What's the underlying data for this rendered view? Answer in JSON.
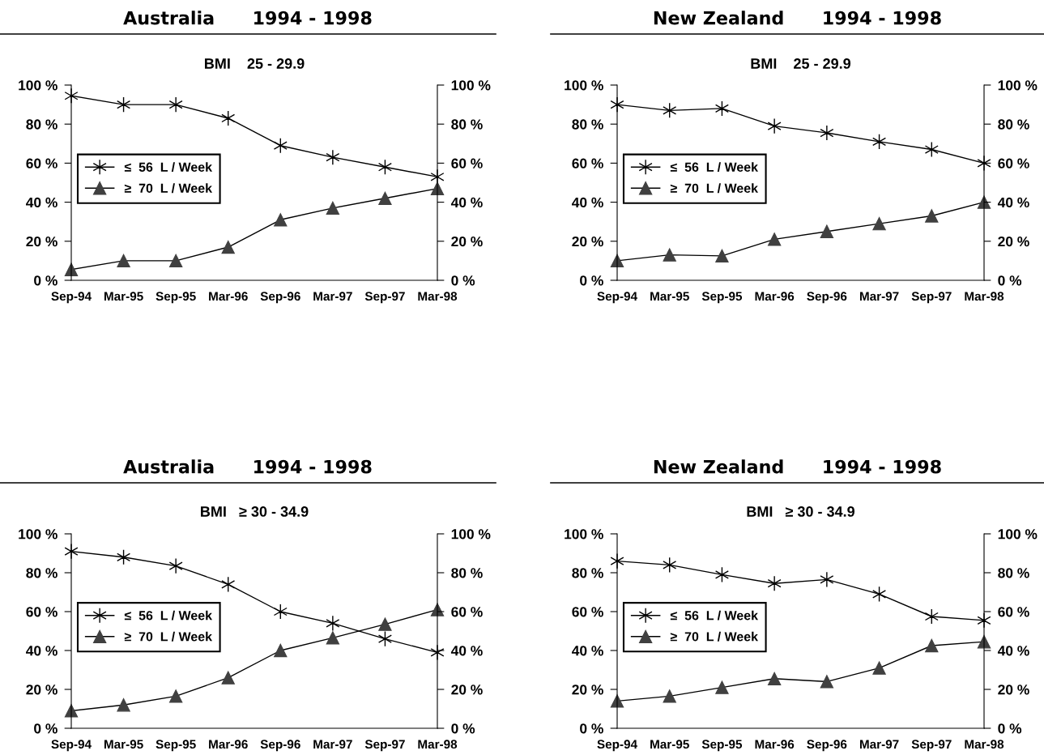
{
  "chart_data": [
    {
      "type": "line",
      "title": "Australia      1994 - 1998",
      "subtitle": "BMI    25 - 29.9",
      "categories": [
        "Sep-94",
        "Mar-95",
        "Sep-95",
        "Mar-96",
        "Sep-96",
        "Mar-97",
        "Sep-97",
        "Mar-98"
      ],
      "series": [
        {
          "name": "≤  56  L / Week",
          "color": "#000000",
          "marker": "cross",
          "values": [
            94.5,
            90,
            90,
            83,
            69,
            63,
            58,
            53
          ]
        },
        {
          "name": "≥  70  L / Week",
          "color": "#404040",
          "marker": "triangle",
          "values": [
            5.5,
            10,
            10,
            17,
            31,
            37,
            42,
            47
          ]
        }
      ],
      "ylim": [
        0,
        100
      ],
      "yticks": [
        {
          "value": 0,
          "label": "0 %"
        },
        {
          "value": 20,
          "label": "20 %"
        },
        {
          "value": 40,
          "label": "40 %"
        },
        {
          "value": 60,
          "label": "60 %"
        },
        {
          "value": 80,
          "label": "80 %"
        },
        {
          "value": 100,
          "label": "100 %"
        }
      ],
      "y2lim": [
        0,
        100
      ],
      "y2ticks": [
        {
          "value": 0,
          "label": "0 %"
        },
        {
          "value": 20,
          "label": "20 %"
        },
        {
          "value": 40,
          "label": "40 %"
        },
        {
          "value": 60,
          "label": "60 %"
        },
        {
          "value": 80,
          "label": "80 %"
        },
        {
          "value": 100,
          "label": "100 %"
        }
      ],
      "grid": false,
      "legend": "left",
      "line_style": "solid"
    },
    {
      "type": "line",
      "title": "New Zealand      1994 - 1998",
      "subtitle": "BMI    25 - 29.9",
      "categories": [
        "Sep-94",
        "Mar-95",
        "Sep-95",
        "Mar-96",
        "Sep-96",
        "Mar-97",
        "Sep-97",
        "Mar-98"
      ],
      "series": [
        {
          "name": "≤  56  L / Week",
          "color": "#000000",
          "marker": "cross",
          "values": [
            90,
            87,
            88,
            79,
            75.5,
            71,
            67,
            60
          ]
        },
        {
          "name": "≥  70  L / Week",
          "color": "#404040",
          "marker": "triangle",
          "values": [
            10,
            13,
            12.5,
            21,
            25,
            29,
            33,
            40
          ]
        }
      ],
      "ylim": [
        0,
        100
      ],
      "yticks": [
        {
          "value": 0,
          "label": "0 %"
        },
        {
          "value": 20,
          "label": "20 %"
        },
        {
          "value": 40,
          "label": "40 %"
        },
        {
          "value": 60,
          "label": "60 %"
        },
        {
          "value": 80,
          "label": "80 %"
        },
        {
          "value": 100,
          "label": "100 %"
        }
      ],
      "y2lim": [
        0,
        100
      ],
      "y2ticks": [
        {
          "value": 0,
          "label": "0 %"
        },
        {
          "value": 20,
          "label": "20 %"
        },
        {
          "value": 40,
          "label": "40 %"
        },
        {
          "value": 60,
          "label": "60 %"
        },
        {
          "value": 80,
          "label": "80 %"
        },
        {
          "value": 100,
          "label": "100 %"
        }
      ],
      "grid": false,
      "legend": "left",
      "line_style": "solid"
    },
    {
      "type": "line",
      "title": "Australia      1994 - 1998",
      "subtitle": "BMI   ≥ 30 - 34.9",
      "categories": [
        "Sep-94",
        "Mar-95",
        "Sep-95",
        "Mar-96",
        "Sep-96",
        "Mar-97",
        "Sep-97",
        "Mar-98"
      ],
      "series": [
        {
          "name": "≤  56  L / Week",
          "color": "#000000",
          "marker": "cross",
          "values": [
            91,
            88,
            83.5,
            74,
            60,
            54,
            46,
            39
          ]
        },
        {
          "name": "≥  70  L / Week",
          "color": "#404040",
          "marker": "triangle",
          "values": [
            9,
            12,
            16.5,
            26,
            40,
            46.5,
            53.5,
            61
          ]
        }
      ],
      "ylim": [
        0,
        100
      ],
      "yticks": [
        {
          "value": 0,
          "label": "0 %"
        },
        {
          "value": 20,
          "label": "20 %"
        },
        {
          "value": 40,
          "label": "40 %"
        },
        {
          "value": 60,
          "label": "60 %"
        },
        {
          "value": 80,
          "label": "80 %"
        },
        {
          "value": 100,
          "label": "100 %"
        }
      ],
      "y2lim": [
        0,
        100
      ],
      "y2ticks": [
        {
          "value": 0,
          "label": "0 %"
        },
        {
          "value": 20,
          "label": "20 %"
        },
        {
          "value": 40,
          "label": "40 %"
        },
        {
          "value": 60,
          "label": "60 %"
        },
        {
          "value": 80,
          "label": "80 %"
        },
        {
          "value": 100,
          "label": "100 %"
        }
      ],
      "grid": false,
      "legend": "left",
      "line_style": "solid"
    },
    {
      "type": "line",
      "title": "New Zealand      1994 - 1998",
      "subtitle": "BMI   ≥ 30 - 34.9",
      "categories": [
        "Sep-94",
        "Mar-95",
        "Sep-95",
        "Mar-96",
        "Sep-96",
        "Mar-97",
        "Sep-97",
        "Mar-98"
      ],
      "series": [
        {
          "name": "≤  56  L / Week",
          "color": "#000000",
          "marker": "cross",
          "values": [
            86,
            84,
            79,
            74.5,
            76.5,
            69,
            57.5,
            55.5
          ]
        },
        {
          "name": "≥  70  L / Week",
          "color": "#404040",
          "marker": "triangle",
          "values": [
            14,
            16.5,
            21,
            25.5,
            24,
            31,
            42.5,
            44.5
          ]
        }
      ],
      "ylim": [
        0,
        100
      ],
      "yticks": [
        {
          "value": 0,
          "label": "0 %"
        },
        {
          "value": 20,
          "label": "20 %"
        },
        {
          "value": 40,
          "label": "40 %"
        },
        {
          "value": 60,
          "label": "60 %"
        },
        {
          "value": 80,
          "label": "80 %"
        },
        {
          "value": 100,
          "label": "100 %"
        }
      ],
      "y2lim": [
        0,
        100
      ],
      "y2ticks": [
        {
          "value": 0,
          "label": "0 %"
        },
        {
          "value": 20,
          "label": "20 %"
        },
        {
          "value": 40,
          "label": "40 %"
        },
        {
          "value": 60,
          "label": "60 %"
        },
        {
          "value": 80,
          "label": "80 %"
        },
        {
          "value": 100,
          "label": "100 %"
        }
      ],
      "grid": false,
      "legend": "left",
      "line_style": "solid"
    }
  ]
}
